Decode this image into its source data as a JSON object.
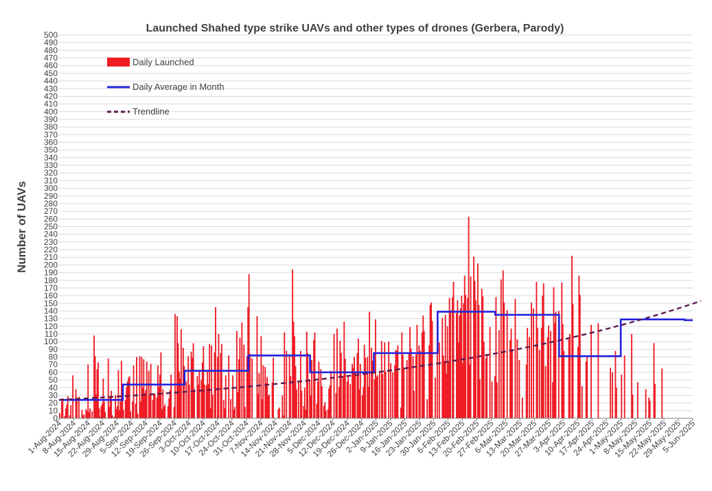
{
  "chart_data": {
    "type": "bar",
    "title": "Launched Shahed type strike UAVs and other types of drones (Gerbera, Parody)",
    "ylabel": "Number of UAVs",
    "xlabel": "",
    "ylim": [
      0,
      500
    ],
    "ytick_step": 10,
    "grid": true,
    "legend_position": "top-left",
    "x_start": "2024-08-01",
    "x_end": "2025-06-05",
    "xtick_labels": [
      "1-Aug-2024",
      "8-Aug-2024",
      "15-Aug-2024",
      "22-Aug-2024",
      "29-Aug-2024",
      "5-Sep-2024",
      "12-Sep-2024",
      "19-Sep-2024",
      "26-Sep-2024",
      "3-Oct-2024",
      "10-Oct-2024",
      "17-Oct-2024",
      "24-Oct-2024",
      "31-Oct-2024",
      "7-Nov-2024",
      "14-Nov-2024",
      "21-Nov-2024",
      "28-Nov-2024",
      "5-Dec-2024",
      "12-Dec-2024",
      "19-Dec-2024",
      "26-Dec-2024",
      "2-Jan-2025",
      "9-Jan-2025",
      "16-Jan-2025",
      "23-Jan-2025",
      "30-Jan-2025",
      "6-Feb-2025",
      "13-Feb-2025",
      "20-Feb-2025",
      "27-Feb-2025",
      "6-Mar-2025",
      "13-Mar-2025",
      "20-Mar-2025",
      "27-Mar-2025",
      "3-Apr-2025",
      "10-Apr-2025",
      "17-Apr-2025",
      "24-Apr-2025",
      "1-May-2025",
      "8-May-2025",
      "15-May-2025",
      "22-May-2025",
      "29-May-2025",
      "5-Jun-2025"
    ],
    "colors": {
      "bars": "#ee1c25",
      "monthly_average": "#2222dd",
      "trendline": "#5a1a50",
      "grid": "#d9d9d9",
      "text": "#404040"
    },
    "series": [
      {
        "name": "Daily Launched",
        "type": "bar",
        "values": [
          7,
          0,
          22,
          26,
          0,
          3,
          13,
          18,
          29,
          0,
          4,
          17,
          0,
          56,
          0,
          0,
          38,
          27,
          0,
          28,
          0,
          0,
          11,
          4,
          5,
          0,
          12,
          9,
          70,
          8,
          13,
          0,
          9,
          0,
          108,
          81,
          31,
          64,
          73,
          13,
          2,
          16,
          19,
          52,
          22,
          8,
          0,
          0,
          78,
          15,
          27,
          36,
          4,
          0,
          2,
          30,
          12,
          16,
          63,
          11,
          22,
          75,
          26,
          11,
          0,
          24,
          41,
          48,
          53,
          55,
          9,
          0,
          22,
          69,
          0,
          19,
          80,
          6,
          0,
          81,
          22,
          80,
          40,
          77,
          33,
          37,
          74,
          0,
          62,
          30,
          71,
          0,
          24,
          32,
          32,
          0,
          27,
          69,
          41,
          57,
          86,
          12,
          38,
          15,
          18,
          0,
          0,
          16,
          26,
          37,
          57,
          0,
          0,
          15,
          136,
          0,
          133,
          98,
          61,
          52,
          116,
          0,
          92,
          68,
          0,
          48,
          0,
          81,
          44,
          0,
          87,
          79,
          98,
          38,
          0,
          0,
          55,
          44,
          62,
          0,
          50,
          73,
          94,
          44,
          0,
          43,
          61,
          45,
          97,
          13,
          95,
          31,
          0,
          86,
          145,
          0,
          80,
          110,
          0,
          85,
          97,
          0,
          24,
          13,
          56,
          0,
          0,
          82,
          0,
          25,
          0,
          56,
          11,
          15,
          0,
          114,
          34,
          77,
          105,
          0,
          125,
          0,
          96,
          15,
          0,
          81,
          145,
          188,
          84,
          0,
          78,
          0,
          0,
          0,
          0,
          133,
          32,
          59,
          0,
          107,
          25,
          69,
          0,
          67,
          46,
          54,
          30,
          31,
          0,
          0,
          47,
          79,
          0,
          0,
          0,
          0,
          12,
          14,
          0,
          0,
          30,
          4,
          112,
          0,
          88,
          0,
          0,
          83,
          55,
          0,
          194,
          126,
          107,
          68,
          38,
          0,
          47,
          0,
          88,
          36,
          0,
          16,
          40,
          11,
          113,
          85,
          0,
          51,
          30,
          76,
          0,
          102,
          112,
          0,
          19,
          48,
          74,
          0,
          64,
          42,
          0,
          16,
          21,
          10,
          0,
          12,
          39,
          43,
          62,
          0,
          0,
          110,
          0,
          33,
          117,
          0,
          41,
          101,
          85,
          0,
          55,
          126,
          78,
          0,
          48,
          56,
          0,
          45,
          0,
          71,
          66,
          80,
          60,
          0,
          85,
          104,
          38,
          71,
          0,
          30,
          41,
          96,
          79,
          0,
          80,
          41,
          139,
          0,
          92,
          75,
          0,
          51,
          129,
          54,
          56,
          0,
          60,
          0,
          101,
          58,
          0,
          99,
          61,
          0,
          0,
          100,
          0,
          72,
          0,
          60,
          0,
          69,
          89,
          88,
          95,
          0,
          0,
          14,
          112,
          83,
          64,
          0,
          0,
          76,
          0,
          84,
          119,
          91,
          0,
          81,
          36,
          0,
          83,
          122,
          0,
          95,
          88,
          0,
          112,
          134,
          114,
          0,
          0,
          25,
          0,
          95,
          148,
          151,
          127,
          0,
          0,
          53,
          0,
          130,
          0,
          99,
          0,
          0,
          131,
          82,
          75,
          135,
          58,
          120,
          73,
          157,
          141,
          0,
          158,
          178,
          0,
          0,
          137,
          154,
          99,
          134,
          143,
          160,
          72,
          150,
          186,
          161,
          0,
          157,
          263,
          70,
          185,
          0,
          0,
          211,
          179,
          154,
          0,
          202,
          148,
          51,
          0,
          169,
          159,
          100,
          0,
          78,
          84,
          0,
          0,
          119,
          0,
          48,
          0,
          0,
          55,
          158,
          47,
          0,
          115,
          0,
          181,
          0,
          193,
          151,
          0,
          0,
          141,
          0,
          0,
          102,
          117,
          88,
          0,
          0,
          156,
          0,
          103,
          0,
          76,
          0,
          0,
          27,
          0,
          0,
          0,
          70,
          118,
          0,
          106,
          0,
          151,
          0,
          143,
          0,
          0,
          178,
          118,
          0,
          89,
          0,
          118,
          160,
          176,
          0,
          68,
          0,
          106,
          121,
          0,
          114,
          0,
          47,
          171,
          124,
          139,
          0,
          0,
          140,
          0,
          0,
          177,
          123,
          88,
          0,
          0,
          0,
          0,
          103,
          110,
          0,
          212,
          149,
          0,
          0,
          0,
          0,
          93,
          186,
          161,
          0,
          42,
          0,
          0,
          0,
          74,
          82,
          0,
          0,
          0,
          122,
          0,
          0,
          0,
          0,
          0,
          0,
          124,
          0,
          0,
          0,
          0,
          0,
          0,
          0,
          0,
          0,
          0,
          0,
          66,
          0,
          60,
          0,
          0,
          88,
          40,
          0,
          0,
          0,
          0,
          57,
          0,
          0,
          82,
          0,
          0,
          0,
          0,
          0,
          0,
          110,
          31,
          0,
          0,
          0,
          0,
          47,
          0,
          0,
          0,
          0,
          0,
          0,
          0,
          38,
          0,
          0,
          27,
          23,
          0,
          0,
          0,
          98,
          45,
          0,
          0,
          0,
          0,
          0,
          0,
          65,
          0,
          0,
          0,
          0,
          0,
          0,
          0,
          0,
          0,
          0,
          0,
          0,
          0,
          0,
          0,
          0,
          0,
          0,
          0,
          0,
          0,
          0,
          0,
          0,
          0,
          0,
          0,
          0,
          0,
          0
        ]
      },
      {
        "name": "Daily Average in Month",
        "type": "step",
        "segments": [
          {
            "month": "Aug-2024",
            "value": 24
          },
          {
            "month": "Sep-2024",
            "value": 44
          },
          {
            "month": "Oct-2024",
            "value": 62
          },
          {
            "month": "Nov-2024",
            "value": 82
          },
          {
            "month": "Dec-2024",
            "value": 60
          },
          {
            "month": "Jan-2025",
            "value": 85
          },
          {
            "month": "Feb-2025",
            "value": 139
          },
          {
            "month": "Mar-2025",
            "value": 135
          },
          {
            "month": "Apr-2025",
            "value": 81
          },
          {
            "month": "May-2025",
            "value": 129
          },
          {
            "month": "Jun-2025",
            "value": 128
          }
        ]
      },
      {
        "name": "Trendline",
        "type": "trend",
        "start_value": 24,
        "end_value": 154
      }
    ]
  }
}
